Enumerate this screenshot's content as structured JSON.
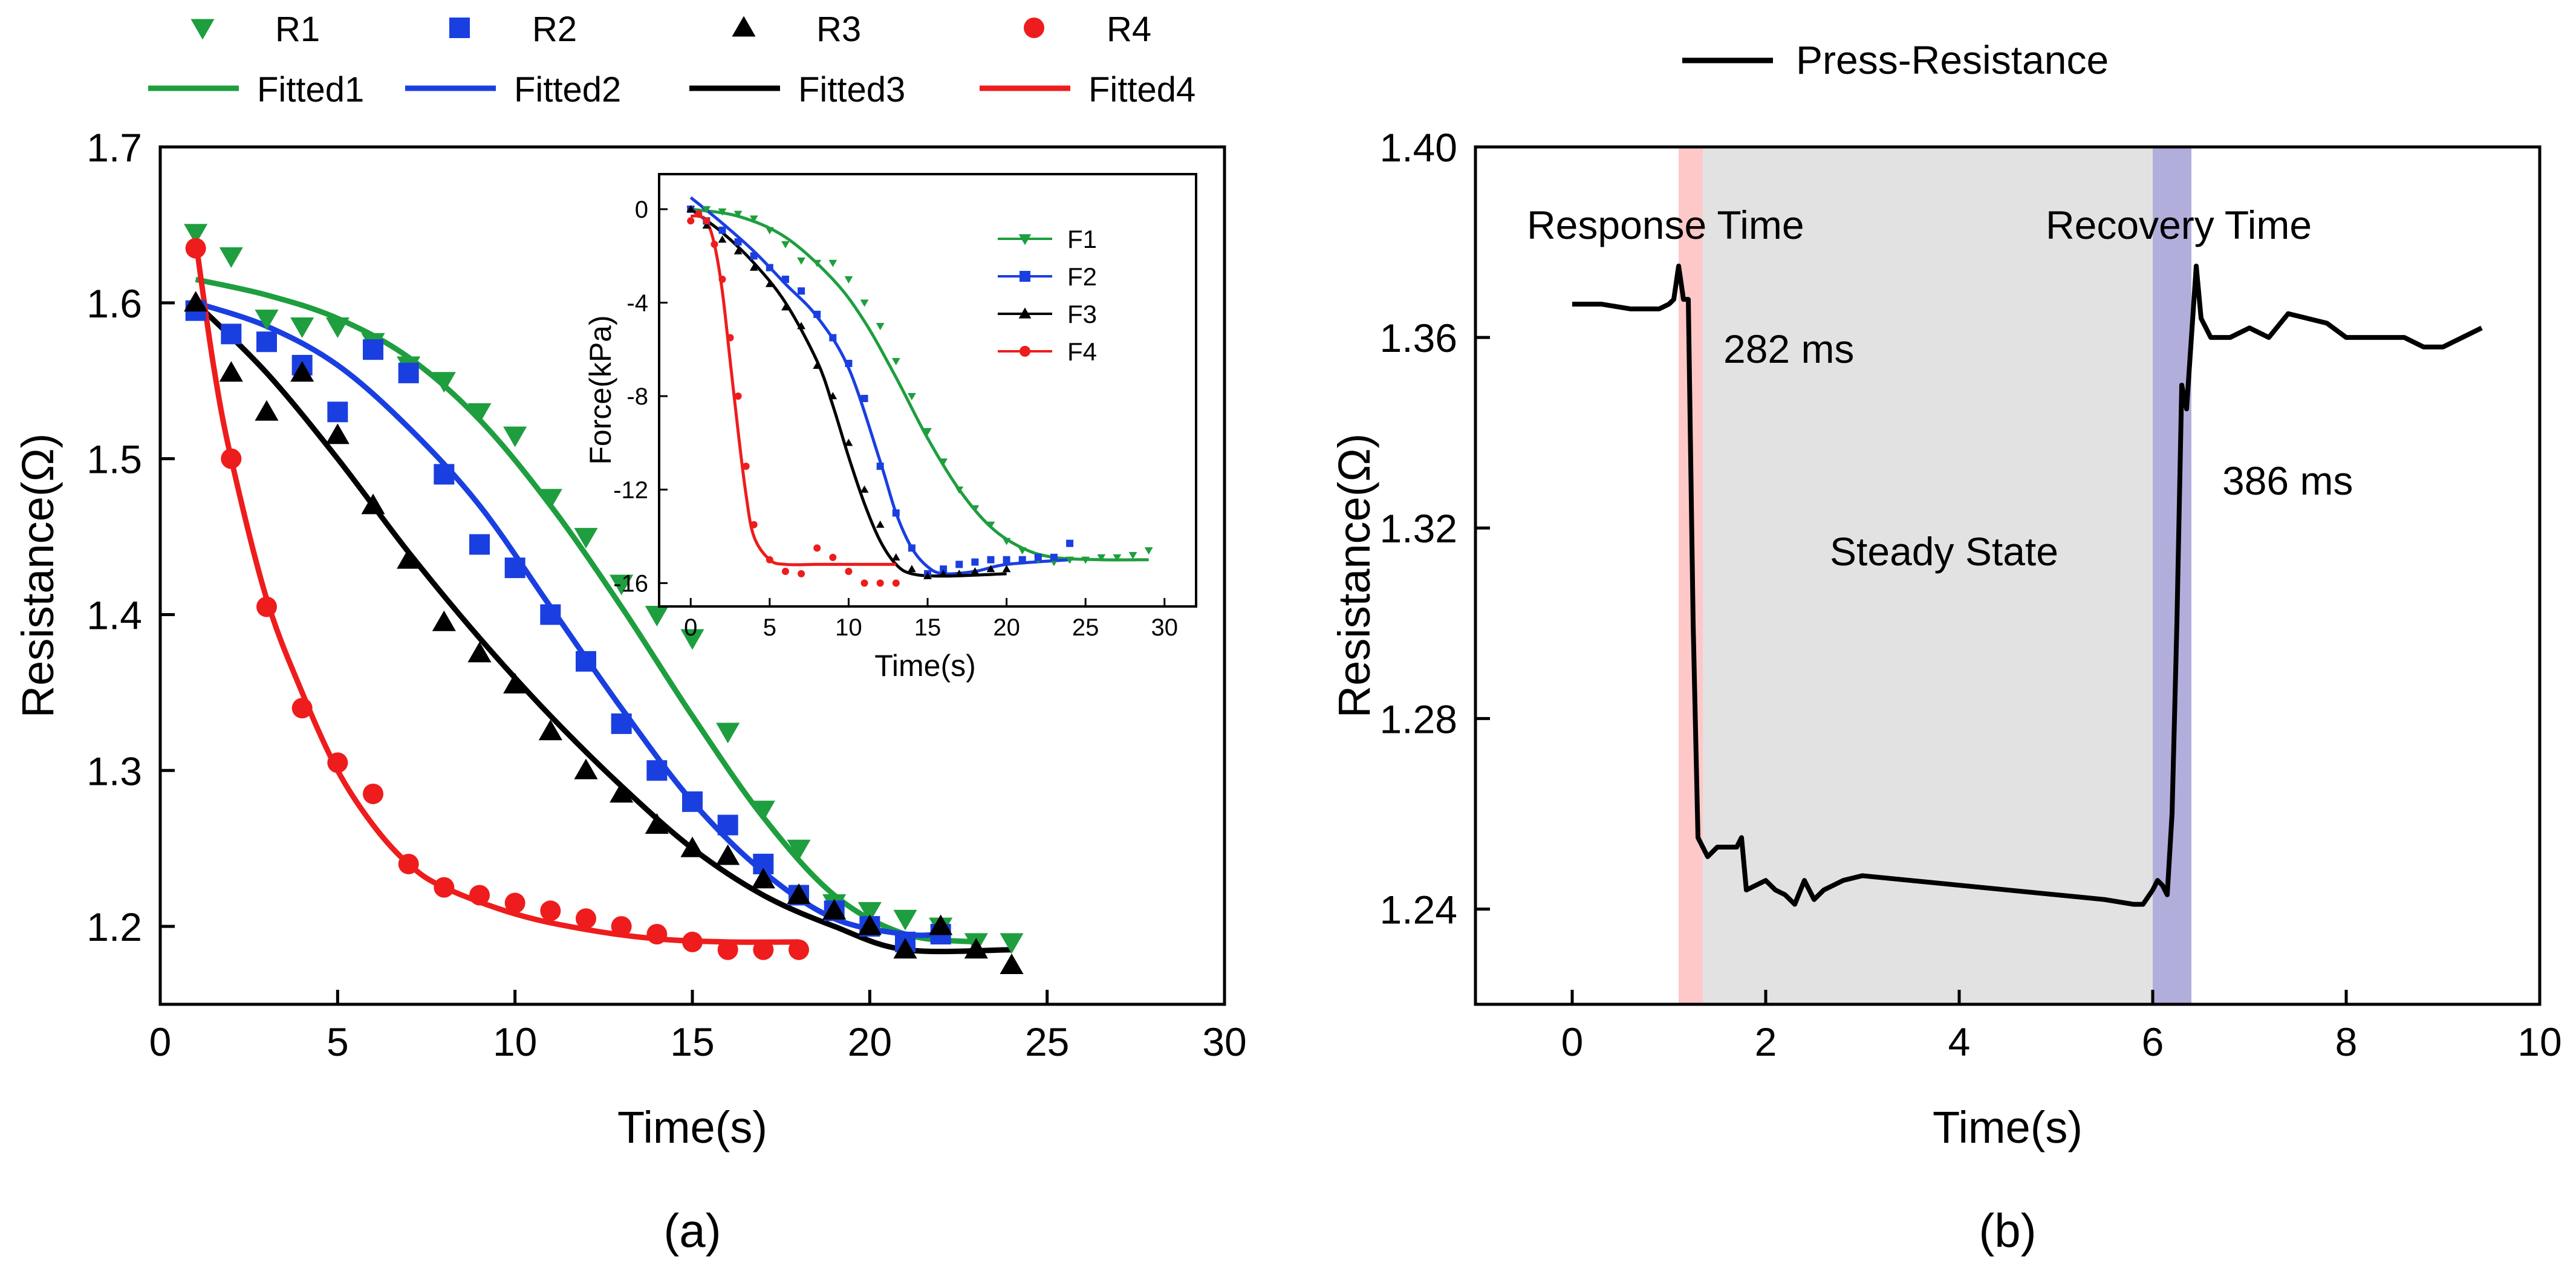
{
  "panel_labels": {
    "a": "(a)",
    "b": "(b)"
  },
  "chart_data": [
    {
      "id": "a",
      "type": "scatter",
      "xlabel": "Time(s)",
      "ylabel": "Resistance(Ω)",
      "xlim": [
        0,
        30
      ],
      "ylim": [
        1.15,
        1.7
      ],
      "xticks": [
        0,
        5,
        10,
        15,
        20,
        25,
        30
      ],
      "yticks": [
        1.2,
        1.3,
        1.4,
        1.5,
        1.6,
        1.7
      ],
      "legend_position": "top",
      "series": [
        {
          "name": "R1",
          "fit_name": "Fitted1",
          "color": "#1e9e3e",
          "marker": "triangle-down",
          "x": [
            1,
            2,
            3,
            4,
            5,
            6,
            7,
            8,
            9,
            10,
            11,
            12,
            13,
            14,
            15,
            16,
            17,
            18,
            19,
            20,
            21,
            22,
            23,
            24
          ],
          "y": [
            1.645,
            1.63,
            1.59,
            1.585,
            1.585,
            1.575,
            1.56,
            1.55,
            1.53,
            1.515,
            1.475,
            1.45,
            1.42,
            1.4,
            1.385,
            1.325,
            1.275,
            1.25,
            1.215,
            1.21,
            1.205,
            1.2,
            1.19,
            1.19
          ],
          "fit": {
            "x": [
              1,
              3,
              5,
              7,
              9,
              11,
              13,
              15,
              17,
              19,
              21,
              23
            ],
            "y": [
              1.615,
              1.605,
              1.59,
              1.565,
              1.525,
              1.47,
              1.405,
              1.335,
              1.27,
              1.22,
              1.195,
              1.19
            ]
          }
        },
        {
          "name": "R2",
          "fit_name": "Fitted2",
          "color": "#1a3fe0",
          "marker": "square",
          "x": [
            1,
            2,
            3,
            4,
            5,
            6,
            7,
            8,
            9,
            10,
            11,
            12,
            13,
            14,
            15,
            16,
            17,
            18,
            19,
            20,
            21,
            22
          ],
          "y": [
            1.595,
            1.58,
            1.575,
            1.56,
            1.53,
            1.57,
            1.555,
            1.49,
            1.445,
            1.43,
            1.4,
            1.37,
            1.33,
            1.3,
            1.28,
            1.265,
            1.24,
            1.22,
            1.21,
            1.2,
            1.19,
            1.195
          ],
          "fit": {
            "x": [
              1,
              3,
              5,
              7,
              9,
              11,
              13,
              15,
              17,
              19,
              21,
              22
            ],
            "y": [
              1.6,
              1.585,
              1.56,
              1.52,
              1.47,
              1.405,
              1.34,
              1.28,
              1.235,
              1.205,
              1.195,
              1.195
            ]
          }
        },
        {
          "name": "R3",
          "fit_name": "Fitted3",
          "color": "#000000",
          "marker": "triangle-up",
          "x": [
            1,
            2,
            3,
            4,
            5,
            6,
            7,
            8,
            9,
            10,
            11,
            12,
            13,
            14,
            15,
            16,
            17,
            18,
            19,
            20,
            21,
            22,
            23,
            24
          ],
          "y": [
            1.6,
            1.555,
            1.53,
            1.555,
            1.515,
            1.47,
            1.435,
            1.395,
            1.375,
            1.355,
            1.325,
            1.3,
            1.285,
            1.265,
            1.25,
            1.245,
            1.23,
            1.22,
            1.21,
            1.2,
            1.185,
            1.2,
            1.185,
            1.175
          ],
          "fit": {
            "x": [
              1,
              3,
              5,
              7,
              9,
              11,
              13,
              15,
              17,
              19,
              21,
              24
            ],
            "y": [
              1.6,
              1.555,
              1.5,
              1.44,
              1.385,
              1.335,
              1.29,
              1.25,
              1.22,
              1.2,
              1.185,
              1.185
            ]
          }
        },
        {
          "name": "R4",
          "fit_name": "Fitted4",
          "color": "#ee1c1c",
          "marker": "circle",
          "x": [
            1,
            2,
            3,
            4,
            5,
            6,
            7,
            8,
            9,
            10,
            11,
            12,
            13,
            14,
            15,
            16,
            17,
            18
          ],
          "y": [
            1.635,
            1.5,
            1.405,
            1.34,
            1.305,
            1.285,
            1.24,
            1.225,
            1.22,
            1.215,
            1.21,
            1.205,
            1.2,
            1.195,
            1.19,
            1.185,
            1.185,
            1.185
          ],
          "fit": {
            "x": [
              1,
              1.5,
              2,
              3,
              4,
              5,
              6,
              7,
              8,
              10,
              12,
              14,
              16,
              18
            ],
            "y": [
              1.64,
              1.56,
              1.5,
              1.41,
              1.35,
              1.3,
              1.265,
              1.24,
              1.225,
              1.208,
              1.198,
              1.192,
              1.19,
              1.19
            ]
          }
        }
      ]
    },
    {
      "id": "a-inset",
      "type": "line",
      "xlabel": "Time(s)",
      "ylabel": "Force(kPa)",
      "xlim": [
        -2,
        32
      ],
      "ylim": [
        -17,
        1.5
      ],
      "xticks": [
        0,
        5,
        10,
        15,
        20,
        25,
        30
      ],
      "yticks": [
        0,
        -4,
        -8,
        -12,
        -16
      ],
      "legend_position": "right",
      "series": [
        {
          "name": "F1",
          "color": "#1e9e3e",
          "marker": "triangle-down",
          "x": [
            0,
            1,
            2,
            3,
            4,
            5,
            6,
            7,
            8,
            9,
            10,
            11,
            12,
            13,
            14,
            15,
            16,
            17,
            18,
            19,
            20,
            21,
            22,
            23,
            24,
            25,
            26,
            27,
            28,
            29
          ],
          "y": [
            0,
            0,
            -0.1,
            -0.2,
            -0.4,
            -0.9,
            -1.5,
            -2.2,
            -2.3,
            -2.3,
            -3,
            -4,
            -5,
            -6.5,
            -8,
            -9.5,
            -10.8,
            -12,
            -12.8,
            -13.5,
            -14.2,
            -14.6,
            -15,
            -15.1,
            -15,
            -15,
            -14.9,
            -14.9,
            -14.8,
            -14.6
          ],
          "fit": {
            "x": [
              0,
              3,
              6,
              9,
              11,
              13,
              15,
              17,
              19,
              21,
              23,
              26,
              29
            ],
            "y": [
              0,
              -0.3,
              -1.2,
              -3,
              -4.8,
              -7.2,
              -9.8,
              -12,
              -13.6,
              -14.5,
              -14.9,
              -15,
              -15
            ]
          }
        },
        {
          "name": "F2",
          "color": "#1a3fe0",
          "marker": "square",
          "x": [
            0,
            1,
            2,
            3,
            4,
            5,
            6,
            7,
            8,
            9,
            10,
            11,
            12,
            13,
            14,
            15,
            16,
            17,
            18,
            19,
            20,
            21,
            22,
            23,
            24
          ],
          "y": [
            0,
            -0.5,
            -0.9,
            -1.4,
            -2,
            -2.5,
            -3,
            -3.5,
            -4.5,
            -5.5,
            -6.6,
            -8.1,
            -11,
            -13,
            -14.5,
            -15.6,
            -15.4,
            -15.2,
            -15.1,
            -15,
            -15,
            -15,
            -14.9,
            -14.9,
            -14.3
          ],
          "fit": {
            "x": [
              0,
              2,
              4,
              6,
              8,
              10,
              12,
              13,
              14,
              15,
              16,
              18,
              20,
              24
            ],
            "y": [
              0.5,
              -0.6,
              -1.8,
              -3.2,
              -4.6,
              -6.8,
              -10.8,
              -13,
              -14.5,
              -15.3,
              -15.6,
              -15.5,
              -15.2,
              -15
            ]
          }
        },
        {
          "name": "F3",
          "color": "#000000",
          "marker": "triangle-up",
          "x": [
            0,
            1,
            2,
            3,
            4,
            5,
            6,
            7,
            8,
            9,
            10,
            11,
            12,
            13,
            14,
            15,
            16,
            17,
            18,
            19,
            20
          ],
          "y": [
            0,
            -0.7,
            -1.3,
            -1.8,
            -2.5,
            -3.2,
            -4.2,
            -5,
            -6.7,
            -8,
            -10,
            -12,
            -13.5,
            -14.9,
            -15.4,
            -15.7,
            -15.6,
            -15.6,
            -15.5,
            -15.4,
            -15.4
          ],
          "fit": {
            "x": [
              0,
              2,
              4,
              6,
              8,
              9,
              10,
              11,
              12,
              13,
              14,
              16,
              20
            ],
            "y": [
              0,
              -1,
              -2.3,
              -4,
              -6.5,
              -8.4,
              -10.6,
              -12.6,
              -14.2,
              -15.2,
              -15.6,
              -15.7,
              -15.6
            ]
          }
        },
        {
          "name": "F4",
          "color": "#ee1c1c",
          "marker": "circle",
          "x": [
            0,
            0.5,
            1,
            1.5,
            2,
            2.5,
            3,
            3.5,
            4,
            5,
            6,
            7,
            8,
            9,
            10,
            11,
            12,
            13
          ],
          "y": [
            -0.5,
            -0.2,
            -0.5,
            -1.5,
            -3,
            -5.5,
            -8,
            -11,
            -13.5,
            -15,
            -15.5,
            -15.6,
            -14.5,
            -14.9,
            -15.5,
            -16,
            -16,
            -16
          ],
          "fit": {
            "x": [
              0,
              0.5,
              1,
              1.5,
              2,
              2.5,
              3,
              3.5,
              4,
              5,
              6,
              8,
              10,
              13
            ],
            "y": [
              -0.3,
              -0.3,
              -0.5,
              -1.5,
              -3.5,
              -6.5,
              -9.5,
              -12.2,
              -14,
              -15,
              -15.2,
              -15.2,
              -15.2,
              -15.2
            ]
          }
        }
      ]
    },
    {
      "id": "b",
      "type": "line",
      "xlabel": "Time(s)",
      "ylabel": "Resistance(Ω)",
      "xlim": [
        -1,
        10
      ],
      "ylim": [
        1.22,
        1.4
      ],
      "xticks": [
        0,
        2,
        4,
        6,
        8,
        10
      ],
      "yticks": [
        1.24,
        1.28,
        1.32,
        1.36,
        1.4
      ],
      "legend_position": "top",
      "series": [
        {
          "name": "Press-Resistance",
          "color": "#000000",
          "x": [
            0,
            0.3,
            0.6,
            0.9,
            1,
            1.05,
            1.1,
            1.15,
            1.2,
            1.25,
            1.3,
            1.4,
            1.5,
            1.6,
            1.7,
            1.75,
            1.8,
            1.9,
            2,
            2.1,
            2.2,
            2.3,
            2.4,
            2.5,
            2.6,
            2.8,
            3,
            3.5,
            4,
            4.5,
            5,
            5.5,
            5.8,
            5.9,
            6,
            6.05,
            6.1,
            6.15,
            6.2,
            6.25,
            6.3,
            6.35,
            6.4,
            6.45,
            6.5,
            6.6,
            6.8,
            7,
            7.2,
            7.4,
            7.6,
            7.8,
            8,
            8.2,
            8.4,
            8.6,
            8.8,
            9,
            9.2,
            9.4
          ],
          "y": [
            1.367,
            1.367,
            1.366,
            1.366,
            1.367,
            1.368,
            1.375,
            1.368,
            1.368,
            1.3,
            1.255,
            1.251,
            1.253,
            1.253,
            1.253,
            1.255,
            1.244,
            1.245,
            1.246,
            1.244,
            1.243,
            1.241,
            1.246,
            1.242,
            1.244,
            1.246,
            1.247,
            1.246,
            1.245,
            1.244,
            1.243,
            1.242,
            1.241,
            1.241,
            1.244,
            1.246,
            1.245,
            1.243,
            1.26,
            1.3,
            1.35,
            1.345,
            1.36,
            1.375,
            1.364,
            1.36,
            1.36,
            1.362,
            1.36,
            1.365,
            1.364,
            1.363,
            1.36,
            1.36,
            1.36,
            1.36,
            1.358,
            1.358,
            1.36,
            1.362
          ]
        }
      ],
      "bands": [
        {
          "name": "response",
          "x0": 1.1,
          "x1": 1.35,
          "color": "#ffc8c8",
          "label": "Response Time",
          "value_label": "282 ms"
        },
        {
          "name": "steady",
          "x0": 1.35,
          "x1": 6.0,
          "color": "#e2e2e2",
          "label": "Steady State"
        },
        {
          "name": "recovery",
          "x0": 6.0,
          "x1": 6.4,
          "color": "#b2aedb",
          "label": "Recovery Time",
          "value_label": "386 ms"
        }
      ],
      "annotation_color": "#ee1c1c"
    }
  ]
}
